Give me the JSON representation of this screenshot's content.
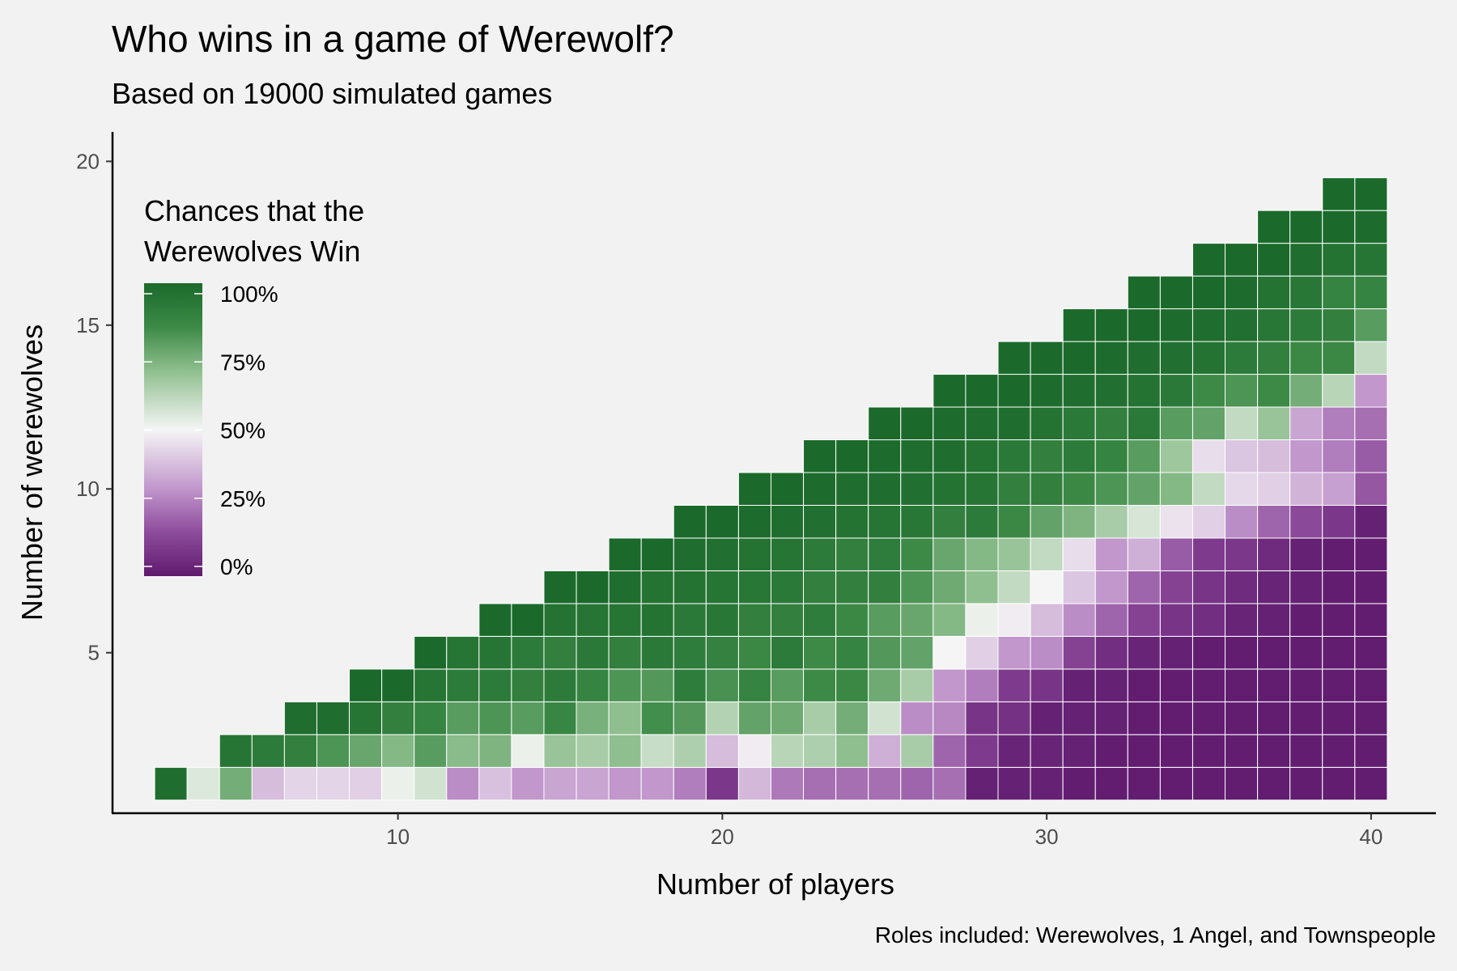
{
  "chart_data": {
    "type": "heatmap",
    "title": "Who wins in a game of Werewolf?",
    "subtitle": "Based on 19000 simulated games",
    "xlabel": "Number of players",
    "ylabel": "Number of werewolves",
    "caption": "Roles included: Werewolves, 1 Angel, and Townspeople",
    "legend": {
      "title_lines": [
        "Chances that the",
        "Werewolves Win"
      ],
      "ticks": [
        1.0,
        0.75,
        0.5,
        0.25,
        0.0
      ],
      "tick_labels": [
        "100%",
        "75%",
        "50%",
        "25%",
        "0%"
      ],
      "placement": "top-left",
      "colors": {
        "low": "#5f1a6e",
        "mid": "#f5f5f5",
        "high": "#1b6a2b"
      }
    },
    "x_ticks": [
      10,
      20,
      30,
      40
    ],
    "y_ticks": [
      5,
      10,
      15,
      20
    ],
    "xlim": [
      1.2,
      42
    ],
    "ylim": [
      0.1,
      20.9
    ],
    "grid": false,
    "x_start": 3,
    "z": [
      [
        0.98,
        0.55,
        0.75,
        0.38,
        0.43,
        0.43,
        0.42,
        0.52,
        0.57,
        0.28,
        0.39,
        0.3,
        0.33,
        0.33,
        0.3,
        0.3,
        0.25,
        0.09,
        0.37,
        0.24,
        0.22,
        0.22,
        0.22,
        0.2,
        0.22,
        0.02,
        0.02,
        0.02,
        0.01,
        0.01,
        0.01,
        0.01,
        0.01,
        0.01,
        0.01,
        0.01,
        0.01,
        0.01
      ],
      [
        null,
        null,
        0.95,
        0.92,
        0.9,
        0.82,
        0.77,
        0.72,
        0.8,
        0.71,
        0.73,
        0.52,
        0.68,
        0.65,
        0.7,
        0.59,
        0.64,
        0.38,
        0.48,
        0.62,
        0.64,
        0.7,
        0.35,
        0.65,
        0.2,
        0.1,
        0.03,
        0.03,
        0.02,
        0.01,
        0.01,
        0.01,
        0.01,
        0.01,
        0.01,
        0.01,
        0.01,
        0.01
      ],
      [
        null,
        null,
        null,
        null,
        0.98,
        0.98,
        0.95,
        0.9,
        0.88,
        0.8,
        0.82,
        0.8,
        0.87,
        0.74,
        0.7,
        0.84,
        0.81,
        0.63,
        0.78,
        0.76,
        0.65,
        0.75,
        0.57,
        0.28,
        0.27,
        0.08,
        0.07,
        0.02,
        0.02,
        0.02,
        0.01,
        0.01,
        0.01,
        0.01,
        0.01,
        0.01,
        0.01,
        0.01
      ],
      [
        null,
        null,
        null,
        null,
        null,
        null,
        1.0,
        1.0,
        0.95,
        0.92,
        0.92,
        0.9,
        0.92,
        0.88,
        0.82,
        0.81,
        0.91,
        0.83,
        0.88,
        0.8,
        0.85,
        0.86,
        0.76,
        0.65,
        0.3,
        0.25,
        0.1,
        0.08,
        0.02,
        0.02,
        0.01,
        0.01,
        0.01,
        0.01,
        0.01,
        0.01,
        0.01,
        0.01
      ],
      [
        null,
        null,
        null,
        null,
        null,
        null,
        null,
        null,
        1.0,
        0.95,
        0.95,
        0.92,
        0.9,
        0.93,
        0.9,
        0.93,
        0.91,
        0.89,
        0.86,
        0.92,
        0.85,
        0.88,
        0.81,
        0.78,
        0.5,
        0.42,
        0.3,
        0.28,
        0.12,
        0.06,
        0.03,
        0.02,
        0.01,
        0.01,
        0.01,
        0.01,
        0.01,
        0.01
      ],
      [
        null,
        null,
        null,
        null,
        null,
        null,
        null,
        null,
        null,
        null,
        1.0,
        1.0,
        0.96,
        0.95,
        0.95,
        0.96,
        0.93,
        0.94,
        0.9,
        0.9,
        0.91,
        0.86,
        0.8,
        0.77,
        0.72,
        0.52,
        0.48,
        0.38,
        0.28,
        0.2,
        0.12,
        0.08,
        0.06,
        0.03,
        0.02,
        0.01,
        0.01,
        0.01
      ],
      [
        null,
        null,
        null,
        null,
        null,
        null,
        null,
        null,
        null,
        null,
        null,
        null,
        1.0,
        1.0,
        0.98,
        0.96,
        0.96,
        0.95,
        0.94,
        0.93,
        0.9,
        0.9,
        0.9,
        0.82,
        0.76,
        0.7,
        0.6,
        0.5,
        0.4,
        0.3,
        0.2,
        0.12,
        0.08,
        0.05,
        0.03,
        0.02,
        0.01,
        0.01
      ],
      [
        null,
        null,
        null,
        null,
        null,
        null,
        null,
        null,
        null,
        null,
        null,
        null,
        null,
        null,
        1.0,
        1.0,
        0.98,
        0.97,
        0.96,
        0.95,
        0.92,
        0.9,
        0.91,
        0.85,
        0.77,
        0.72,
        0.68,
        0.6,
        0.45,
        0.3,
        0.35,
        0.18,
        0.1,
        0.09,
        0.05,
        0.02,
        0.01,
        0.01
      ],
      [
        null,
        null,
        null,
        null,
        null,
        null,
        null,
        null,
        null,
        null,
        null,
        null,
        null,
        null,
        null,
        null,
        1.0,
        1.0,
        0.99,
        0.98,
        0.97,
        0.96,
        0.95,
        0.94,
        0.9,
        0.92,
        0.86,
        0.78,
        0.73,
        0.65,
        0.56,
        0.46,
        0.42,
        0.28,
        0.2,
        0.14,
        0.09,
        0.02
      ],
      [
        null,
        null,
        null,
        null,
        null,
        null,
        null,
        null,
        null,
        null,
        null,
        null,
        null,
        null,
        null,
        null,
        null,
        null,
        1.0,
        1.0,
        0.99,
        0.98,
        0.98,
        0.97,
        0.96,
        0.95,
        0.9,
        0.9,
        0.86,
        0.82,
        0.78,
        0.72,
        0.6,
        0.44,
        0.42,
        0.36,
        0.32,
        0.17
      ]
    ],
    "z_upper": [
      [
        null,
        null,
        null,
        null,
        null,
        null,
        null,
        null,
        null,
        null,
        null,
        null,
        null,
        null,
        null,
        null,
        null,
        null,
        null,
        null,
        1.0,
        1.0,
        0.99,
        0.98,
        0.98,
        0.96,
        0.93,
        0.9,
        0.92,
        0.88,
        0.8,
        0.67,
        0.45,
        0.4,
        0.38,
        0.3,
        0.25,
        0.18
      ],
      [
        null,
        null,
        null,
        null,
        null,
        null,
        null,
        null,
        null,
        null,
        null,
        null,
        null,
        null,
        null,
        null,
        null,
        null,
        null,
        null,
        null,
        null,
        1.0,
        1.0,
        0.99,
        0.98,
        0.98,
        0.96,
        0.93,
        0.9,
        0.93,
        0.8,
        0.78,
        0.6,
        0.68,
        0.33,
        0.25,
        0.22
      ],
      [
        null,
        null,
        null,
        null,
        null,
        null,
        null,
        null,
        null,
        null,
        null,
        null,
        null,
        null,
        null,
        null,
        null,
        null,
        null,
        null,
        null,
        null,
        null,
        null,
        1.0,
        1.0,
        1.0,
        0.99,
        0.98,
        0.97,
        0.96,
        0.93,
        0.85,
        0.82,
        0.85,
        0.75,
        0.62,
        0.3
      ],
      [
        null,
        null,
        null,
        null,
        null,
        null,
        null,
        null,
        null,
        null,
        null,
        null,
        null,
        null,
        null,
        null,
        null,
        null,
        null,
        null,
        null,
        null,
        null,
        null,
        null,
        null,
        1.0,
        1.0,
        1.0,
        0.99,
        0.98,
        0.97,
        0.96,
        0.92,
        0.9,
        0.86,
        0.86,
        0.6
      ],
      [
        null,
        null,
        null,
        null,
        null,
        null,
        null,
        null,
        null,
        null,
        null,
        null,
        null,
        null,
        null,
        null,
        null,
        null,
        null,
        null,
        null,
        null,
        null,
        null,
        null,
        null,
        null,
        null,
        1.0,
        1.0,
        1.0,
        0.99,
        0.98,
        0.97,
        0.94,
        0.92,
        0.9,
        0.8
      ],
      [
        null,
        null,
        null,
        null,
        null,
        null,
        null,
        null,
        null,
        null,
        null,
        null,
        null,
        null,
        null,
        null,
        null,
        null,
        null,
        null,
        null,
        null,
        null,
        null,
        null,
        null,
        null,
        null,
        null,
        null,
        1.0,
        1.0,
        1.0,
        0.99,
        0.96,
        0.94,
        0.88,
        0.88
      ],
      [
        null,
        null,
        null,
        null,
        null,
        null,
        null,
        null,
        null,
        null,
        null,
        null,
        null,
        null,
        null,
        null,
        null,
        null,
        null,
        null,
        null,
        null,
        null,
        null,
        null,
        null,
        null,
        null,
        null,
        null,
        null,
        null,
        1.0,
        1.0,
        1.0,
        0.98,
        0.96,
        0.95
      ],
      [
        null,
        null,
        null,
        null,
        null,
        null,
        null,
        null,
        null,
        null,
        null,
        null,
        null,
        null,
        null,
        null,
        null,
        null,
        null,
        null,
        null,
        null,
        null,
        null,
        null,
        null,
        null,
        null,
        null,
        null,
        null,
        null,
        null,
        null,
        1.0,
        1.0,
        1.0,
        0.99
      ],
      [
        null,
        null,
        null,
        null,
        null,
        null,
        null,
        null,
        null,
        null,
        null,
        null,
        null,
        null,
        null,
        null,
        null,
        null,
        null,
        null,
        null,
        null,
        null,
        null,
        null,
        null,
        null,
        null,
        null,
        null,
        null,
        null,
        null,
        null,
        null,
        null,
        1.0,
        1.0
      ],
      [
        null,
        null,
        null,
        null,
        null,
        null,
        null,
        null,
        null,
        null,
        null,
        null,
        null,
        null,
        null,
        null,
        null,
        null,
        null,
        null,
        null,
        null,
        null,
        null,
        null,
        null,
        null,
        null,
        null,
        null,
        null,
        null,
        null,
        null,
        null,
        null,
        null,
        null
      ]
    ]
  }
}
